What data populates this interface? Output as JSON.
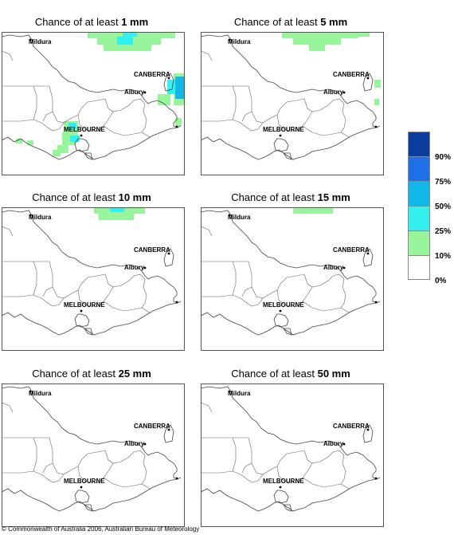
{
  "panels": [
    {
      "prefix": "Chance of at least ",
      "amount": "1 mm"
    },
    {
      "prefix": "Chance of at least ",
      "amount": "5 mm"
    },
    {
      "prefix": "Chance of at least ",
      "amount": "10 mm"
    },
    {
      "prefix": "Chance of at least ",
      "amount": "15 mm"
    },
    {
      "prefix": "Chance of at least ",
      "amount": "25 mm"
    },
    {
      "prefix": "Chance of at least ",
      "amount": "50 mm"
    }
  ],
  "places": {
    "mildura": "Mildura",
    "canberra": "CANBERRA",
    "albury": "Albury",
    "melbourne": "MELBOURNE"
  },
  "legend": {
    "labels": [
      "90%",
      "75%",
      "50%",
      "25%",
      "10%",
      "0%"
    ],
    "colors": [
      "#0a3d9c",
      "#1f6fe6",
      "#12b8e8",
      "#33f0ef",
      "#98f59b",
      "#ffffff"
    ]
  },
  "copyright": "© Commonwealth of Australia 2006, Australian Bureau of Meteorology"
}
